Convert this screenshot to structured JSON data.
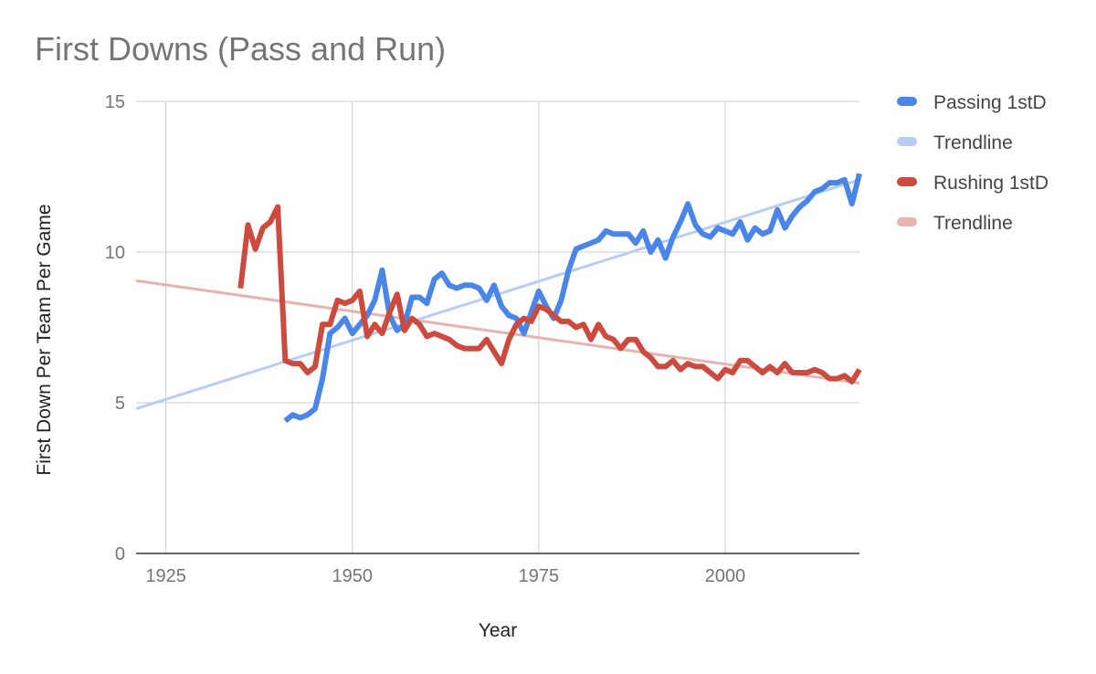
{
  "chart_data": {
    "type": "line",
    "title": "First Downs (Pass and Run)",
    "xlabel": "Year",
    "ylabel": "First Down Per Team Per Game",
    "xlim": [
      1921,
      2018
    ],
    "ylim": [
      0,
      15
    ],
    "xticks": [
      1925,
      1950,
      1975,
      2000
    ],
    "yticks": [
      0,
      5,
      10,
      15
    ],
    "grid": true,
    "legend_position": "right",
    "series": [
      {
        "name": "Passing 1stD",
        "color": "#4a86e8",
        "kind": "data",
        "points": [
          [
            1941,
            4.4
          ],
          [
            1942,
            4.6
          ],
          [
            1943,
            4.5
          ],
          [
            1944,
            4.6
          ],
          [
            1945,
            4.8
          ],
          [
            1946,
            5.8
          ],
          [
            1947,
            7.3
          ],
          [
            1948,
            7.5
          ],
          [
            1949,
            7.8
          ],
          [
            1950,
            7.3
          ],
          [
            1951,
            7.6
          ],
          [
            1952,
            7.9
          ],
          [
            1953,
            8.4
          ],
          [
            1954,
            9.4
          ],
          [
            1955,
            7.9
          ],
          [
            1956,
            7.4
          ],
          [
            1957,
            7.6
          ],
          [
            1958,
            8.5
          ],
          [
            1959,
            8.5
          ],
          [
            1960,
            8.3
          ],
          [
            1961,
            9.1
          ],
          [
            1962,
            9.3
          ],
          [
            1963,
            8.9
          ],
          [
            1964,
            8.8
          ],
          [
            1965,
            8.9
          ],
          [
            1966,
            8.9
          ],
          [
            1967,
            8.8
          ],
          [
            1968,
            8.4
          ],
          [
            1969,
            8.9
          ],
          [
            1970,
            8.2
          ],
          [
            1971,
            7.9
          ],
          [
            1972,
            7.8
          ],
          [
            1973,
            7.3
          ],
          [
            1974,
            8.0
          ],
          [
            1975,
            8.7
          ],
          [
            1976,
            8.2
          ],
          [
            1977,
            7.8
          ],
          [
            1978,
            8.4
          ],
          [
            1979,
            9.4
          ],
          [
            1980,
            10.1
          ],
          [
            1981,
            10.2
          ],
          [
            1982,
            10.3
          ],
          [
            1983,
            10.4
          ],
          [
            1984,
            10.7
          ],
          [
            1985,
            10.6
          ],
          [
            1986,
            10.6
          ],
          [
            1987,
            10.6
          ],
          [
            1988,
            10.3
          ],
          [
            1989,
            10.7
          ],
          [
            1990,
            10.0
          ],
          [
            1991,
            10.4
          ],
          [
            1992,
            9.8
          ],
          [
            1993,
            10.5
          ],
          [
            1994,
            11.0
          ],
          [
            1995,
            11.6
          ],
          [
            1996,
            10.9
          ],
          [
            1997,
            10.6
          ],
          [
            1998,
            10.5
          ],
          [
            1999,
            10.8
          ],
          [
            2000,
            10.7
          ],
          [
            2001,
            10.6
          ],
          [
            2002,
            11.0
          ],
          [
            2003,
            10.4
          ],
          [
            2004,
            10.8
          ],
          [
            2005,
            10.6
          ],
          [
            2006,
            10.7
          ],
          [
            2007,
            11.4
          ],
          [
            2008,
            10.8
          ],
          [
            2009,
            11.2
          ],
          [
            2010,
            11.5
          ],
          [
            2011,
            11.7
          ],
          [
            2012,
            12.0
          ],
          [
            2013,
            12.1
          ],
          [
            2014,
            12.3
          ],
          [
            2015,
            12.3
          ],
          [
            2016,
            12.4
          ],
          [
            2017,
            11.6
          ],
          [
            2018,
            12.6
          ]
        ]
      },
      {
        "name": "Trendline",
        "color": "#b7cdf4",
        "kind": "trend",
        "points": [
          [
            1921,
            4.8
          ],
          [
            2018,
            12.4
          ]
        ]
      },
      {
        "name": "Rushing 1stD",
        "color": "#cc4b3e",
        "kind": "data",
        "points": [
          [
            1935,
            8.8
          ],
          [
            1936,
            10.9
          ],
          [
            1937,
            10.1
          ],
          [
            1938,
            10.8
          ],
          [
            1939,
            11.0
          ],
          [
            1940,
            11.5
          ],
          [
            1941,
            6.4
          ],
          [
            1942,
            6.3
          ],
          [
            1943,
            6.3
          ],
          [
            1944,
            6.0
          ],
          [
            1945,
            6.2
          ],
          [
            1946,
            7.6
          ],
          [
            1947,
            7.6
          ],
          [
            1948,
            8.4
          ],
          [
            1949,
            8.3
          ],
          [
            1950,
            8.4
          ],
          [
            1951,
            8.7
          ],
          [
            1952,
            7.2
          ],
          [
            1953,
            7.6
          ],
          [
            1954,
            7.3
          ],
          [
            1955,
            8.0
          ],
          [
            1956,
            8.6
          ],
          [
            1957,
            7.4
          ],
          [
            1958,
            7.8
          ],
          [
            1959,
            7.6
          ],
          [
            1960,
            7.2
          ],
          [
            1961,
            7.3
          ],
          [
            1962,
            7.2
          ],
          [
            1963,
            7.1
          ],
          [
            1964,
            6.9
          ],
          [
            1965,
            6.8
          ],
          [
            1966,
            6.8
          ],
          [
            1967,
            6.8
          ],
          [
            1968,
            7.1
          ],
          [
            1969,
            6.7
          ],
          [
            1970,
            6.3
          ],
          [
            1971,
            7.1
          ],
          [
            1972,
            7.6
          ],
          [
            1973,
            7.8
          ],
          [
            1974,
            7.7
          ],
          [
            1975,
            8.2
          ],
          [
            1976,
            8.1
          ],
          [
            1977,
            7.9
          ],
          [
            1978,
            7.7
          ],
          [
            1979,
            7.7
          ],
          [
            1980,
            7.5
          ],
          [
            1981,
            7.6
          ],
          [
            1982,
            7.1
          ],
          [
            1983,
            7.6
          ],
          [
            1984,
            7.2
          ],
          [
            1985,
            7.1
          ],
          [
            1986,
            6.8
          ],
          [
            1987,
            7.1
          ],
          [
            1988,
            7.1
          ],
          [
            1989,
            6.7
          ],
          [
            1990,
            6.5
          ],
          [
            1991,
            6.2
          ],
          [
            1992,
            6.2
          ],
          [
            1993,
            6.4
          ],
          [
            1994,
            6.1
          ],
          [
            1995,
            6.3
          ],
          [
            1996,
            6.2
          ],
          [
            1997,
            6.2
          ],
          [
            1998,
            6.0
          ],
          [
            1999,
            5.8
          ],
          [
            2000,
            6.1
          ],
          [
            2001,
            6.0
          ],
          [
            2002,
            6.4
          ],
          [
            2003,
            6.4
          ],
          [
            2004,
            6.2
          ],
          [
            2005,
            6.0
          ],
          [
            2006,
            6.2
          ],
          [
            2007,
            6.0
          ],
          [
            2008,
            6.3
          ],
          [
            2009,
            6.0
          ],
          [
            2010,
            6.0
          ],
          [
            2011,
            6.0
          ],
          [
            2012,
            6.1
          ],
          [
            2013,
            6.0
          ],
          [
            2014,
            5.8
          ],
          [
            2015,
            5.8
          ],
          [
            2016,
            5.9
          ],
          [
            2017,
            5.7
          ],
          [
            2018,
            6.1
          ]
        ]
      },
      {
        "name": "Trendline",
        "color": "#e8b3ae",
        "kind": "trend",
        "points": [
          [
            1921,
            9.05
          ],
          [
            2018,
            5.65
          ]
        ]
      }
    ]
  }
}
